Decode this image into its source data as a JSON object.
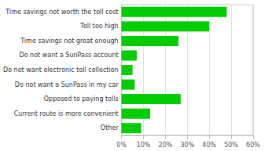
{
  "chart_data": {
    "type": "bar",
    "orientation": "horizontal",
    "categories": [
      "Other",
      "Current route is more convenient",
      "Opposed to paying tolls",
      "Do not want a SunPass in my car",
      "Do not want electronic toll collection",
      "Do not want a SunPass account",
      "Time savings not great enough",
      "Toll too high",
      "Time savings not worth the toll cost"
    ],
    "values": [
      9,
      13,
      27,
      6,
      5,
      7,
      26,
      40,
      48
    ],
    "color": "#00cc00",
    "xlim": [
      0,
      60
    ],
    "xticks": [
      {
        "value": 0,
        "label": "0%"
      },
      {
        "value": 10,
        "label": "10%"
      },
      {
        "value": 20,
        "label": "20%"
      },
      {
        "value": 30,
        "label": "30%"
      },
      {
        "value": 40,
        "label": "40%"
      },
      {
        "value": 50,
        "label": "50%"
      },
      {
        "value": 60,
        "label": "60%"
      }
    ],
    "grid": true
  }
}
